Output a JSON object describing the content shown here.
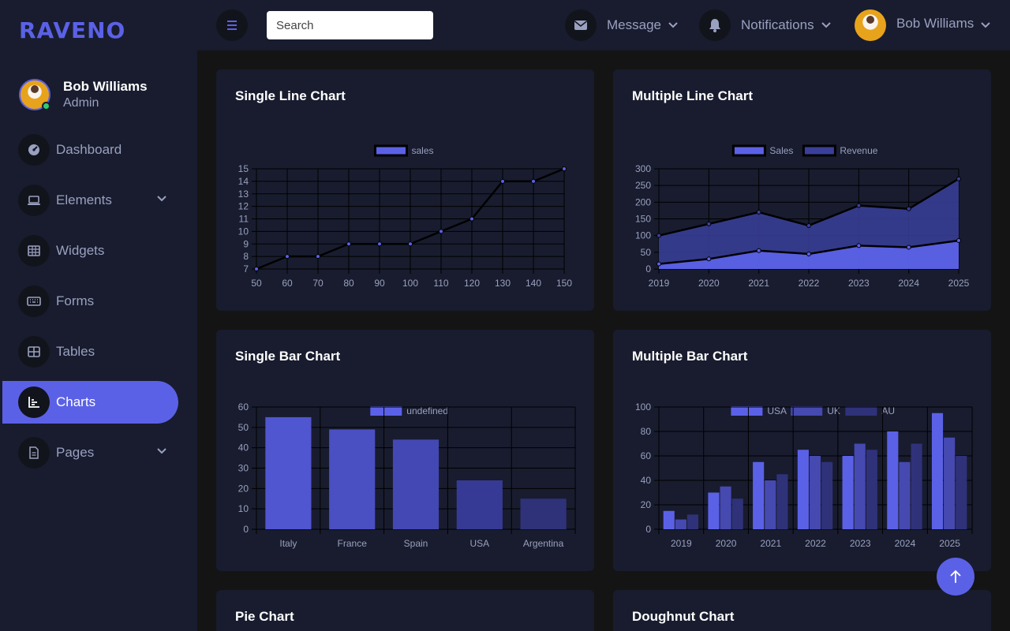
{
  "brand": "RAVENO",
  "profile": {
    "name": "Bob Williams",
    "role": "Admin"
  },
  "nav": [
    {
      "label": "Dashboard",
      "icon": "dashboard-icon",
      "chevron": false,
      "active": false
    },
    {
      "label": "Elements",
      "icon": "laptop-icon",
      "chevron": true,
      "active": false
    },
    {
      "label": "Widgets",
      "icon": "grid-icon",
      "chevron": false,
      "active": false
    },
    {
      "label": "Forms",
      "icon": "keyboard-icon",
      "chevron": false,
      "active": false
    },
    {
      "label": "Tables",
      "icon": "table-icon",
      "chevron": false,
      "active": false
    },
    {
      "label": "Charts",
      "icon": "chart-icon",
      "chevron": false,
      "active": true
    },
    {
      "label": "Pages",
      "icon": "file-icon",
      "chevron": true,
      "active": false
    }
  ],
  "topbar": {
    "search_placeholder": "Search",
    "message_label": "Message",
    "notifications_label": "Notifications",
    "user_name": "Bob Williams"
  },
  "colors": {
    "accent": "#5b61e6",
    "accent_mid": "#4549b0",
    "accent_dark": "#2f3279",
    "sidebar_bg": "#181c2e",
    "page_bg": "#141414"
  },
  "cards": {
    "single_line": {
      "title": "Single Line Chart"
    },
    "multi_line": {
      "title": "Multiple Line Chart"
    },
    "single_bar": {
      "title": "Single Bar Chart"
    },
    "multi_bar": {
      "title": "Multiple Bar Chart"
    },
    "pie": {
      "title": "Pie Chart"
    },
    "doughnut": {
      "title": "Doughnut Chart"
    }
  },
  "chart_data": [
    {
      "id": "single_line",
      "type": "line",
      "x": [
        50,
        60,
        70,
        80,
        90,
        100,
        110,
        120,
        130,
        140,
        150
      ],
      "series": [
        {
          "name": "sales",
          "values": [
            7,
            8,
            8,
            9,
            9,
            9,
            10,
            11,
            14,
            14,
            15
          ]
        }
      ],
      "ylim": [
        7,
        15
      ],
      "yticks": [
        7,
        8,
        9,
        10,
        11,
        12,
        13,
        14,
        15
      ],
      "grid": true,
      "legend": "top-center"
    },
    {
      "id": "multi_line",
      "type": "area",
      "x": [
        "2019",
        "2020",
        "2021",
        "2022",
        "2023",
        "2024",
        "2025"
      ],
      "series": [
        {
          "name": "Sales",
          "values": [
            15,
            30,
            55,
            45,
            70,
            65,
            85
          ]
        },
        {
          "name": "Revenue",
          "values": [
            100,
            135,
            170,
            130,
            190,
            180,
            270
          ]
        }
      ],
      "ylim": [
        0,
        300
      ],
      "yticks": [
        0,
        50,
        100,
        150,
        200,
        250,
        300
      ],
      "grid": true,
      "legend": "top-center"
    },
    {
      "id": "single_bar",
      "type": "bar",
      "categories": [
        "Italy",
        "France",
        "Spain",
        "USA",
        "Argentina"
      ],
      "series": [
        {
          "name": "undefined",
          "values": [
            55,
            49,
            44,
            24,
            15
          ]
        }
      ],
      "ylim": [
        0,
        60
      ],
      "yticks": [
        0,
        10,
        20,
        30,
        40,
        50,
        60
      ],
      "grid": true,
      "legend": "top-center"
    },
    {
      "id": "multi_bar",
      "type": "bar",
      "categories": [
        "2019",
        "2020",
        "2021",
        "2022",
        "2023",
        "2024",
        "2025"
      ],
      "series": [
        {
          "name": "USA",
          "values": [
            15,
            30,
            55,
            65,
            60,
            80,
            95
          ]
        },
        {
          "name": "UK",
          "values": [
            8,
            35,
            40,
            60,
            70,
            55,
            75
          ]
        },
        {
          "name": "AU",
          "values": [
            12,
            25,
            45,
            55,
            65,
            70,
            60
          ]
        }
      ],
      "ylim": [
        0,
        100
      ],
      "yticks": [
        0,
        20,
        40,
        60,
        80,
        100
      ],
      "grid": true,
      "legend": "top-center"
    }
  ]
}
